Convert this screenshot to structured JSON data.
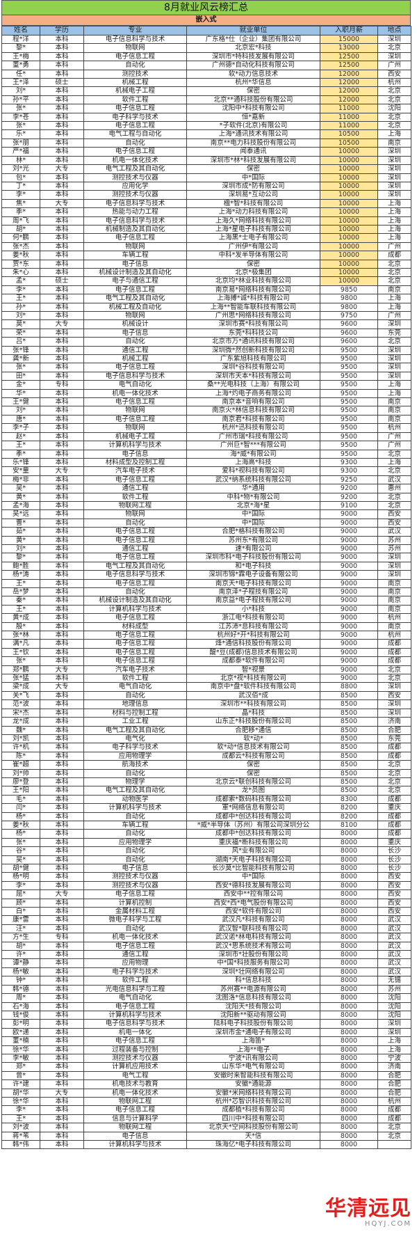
{
  "title": "8月就业风云榜汇总",
  "subtitle": "嵌入式",
  "columns": [
    "姓名",
    "学历",
    "专业",
    "就业单位",
    "入职月薪",
    "地点"
  ],
  "colors": {
    "title_bg": "#92D050",
    "subtitle_bg": "#F4B084",
    "header_bg": "#9BC2E6",
    "high_salary_bg": "#FFE699",
    "watermark": "#E1201E"
  },
  "high_salary_threshold": 10000,
  "rows": [
    [
      "程*洋",
      "本科",
      "电子信息科学与技术",
      "广东格*仕（企业）集团有限公司",
      "15000",
      "深圳"
    ],
    [
      "黎*",
      "本科",
      "物联网",
      "北京宏*科技",
      "13000",
      "北京"
    ],
    [
      "王*梅",
      "本科",
      "电子信息工程",
      "深圳市*特科技发展有限公司",
      "12500",
      "深圳"
    ],
    [
      "董*勇",
      "本科",
      "自动化",
      "广州德*自动化科技有限公司",
      "12500",
      "广州"
    ],
    [
      "任*",
      "本科",
      "测控技术",
      "软*动力信息技术",
      "12000",
      "西安"
    ],
    [
      "王*泽",
      "硕士",
      "机械工程",
      "杭州*华信息",
      "12000",
      "杭州"
    ],
    [
      "刘*",
      "本科",
      "机械电子工程",
      "保密",
      "12000",
      "北京"
    ],
    [
      "孙*平",
      "本科",
      "软件工程",
      "北京**通科技股份有限公司",
      "12000",
      "北京"
    ],
    [
      "张*",
      "本科",
      "电子信息工程",
      "沈阳中*科技有限公司",
      "11000",
      "沈阳"
    ],
    [
      "李*苍",
      "本科",
      "电子科学与技术",
      "恒*嘉新",
      "11000",
      "北京"
    ],
    [
      "张*",
      "本科",
      "电子信息工程",
      "*子软件(北京)有限公司",
      "11000",
      "北京"
    ],
    [
      "乐*",
      "本科",
      "电气工程与自动化",
      "上海*通讯技术有限公司",
      "10500",
      "上海"
    ],
    [
      "张*朋",
      "本科",
      "自动化",
      "南京**电力科技股份有限公司",
      "10500",
      "南京"
    ],
    [
      "严*福",
      "本科",
      "电子信息工程",
      "闻泰通讯",
      "10000",
      "深圳"
    ],
    [
      "林*",
      "本科",
      "机电一体化技术",
      "深圳市*林*科技发展有限公司",
      "10000",
      "深圳"
    ],
    [
      "刘*光",
      "大专",
      "电气工程及其自动化",
      "保密",
      "10000",
      "深圳"
    ],
    [
      "包*",
      "本科",
      "测控技术与仪器",
      "中*国际",
      "10000",
      "深圳"
    ],
    [
      "丁*",
      "本科",
      "应用化学",
      "深圳市成*防有限公司",
      "10000",
      "深圳"
    ],
    [
      "李*",
      "本科",
      "测控技术与仪器",
      "深圳易*互动公司",
      "10000",
      "深圳"
    ],
    [
      "焦*",
      "大专",
      "电子信息科学与技术",
      "楹*智*科技有限公司",
      "10000",
      "上海"
    ],
    [
      "季*",
      "本科",
      "热能与动力工程",
      "上海*动力科技有限公司",
      "10000",
      "上海"
    ],
    [
      "周*飞",
      "本科",
      "电子信息科学与技术",
      "上海久*网络科技有限公司",
      "10000",
      "上海"
    ],
    [
      "胡*",
      "本科",
      "机械制造及其自动化",
      "上海*星电子科技有限公司",
      "10000",
      "上海"
    ],
    [
      "何*鹏",
      "本科",
      "电子信息工程",
      "上海黑*士电子有限公司",
      "10000",
      "上海"
    ],
    [
      "张*杰",
      "本科",
      "物联网",
      "广州伊*有限公司",
      "10000",
      "广州"
    ],
    [
      "姜*秋",
      "本科",
      "车辆工程",
      "中科*发半导体有限公司",
      "10000",
      "成都"
    ],
    [
      "贾*东",
      "本科",
      "电子信息",
      "保密",
      "10000",
      "北京"
    ],
    [
      "朱*心",
      "本科",
      "机械设计制造及其自动化",
      "北京*极集团",
      "10000",
      "北京"
    ],
    [
      "孟*",
      "硕士",
      "电子与通信工程",
      "北京均*林业科技有限公司",
      "10000",
      "北京"
    ],
    [
      "李*",
      "本科",
      "电子信息工程",
      "南京易*网络科技有限公司",
      "9850",
      "南京"
    ],
    [
      "王*",
      "本科",
      "电气工程及其自动化",
      "上海搏*诚*科技有限公司",
      "9800",
      "上海"
    ],
    [
      "孙*",
      "本科",
      "机械工程及自动化",
      "上海**智能车联科技有限公司",
      "9800",
      "上海"
    ],
    [
      "刘*",
      "本科",
      "物联网",
      "广州思*网络科技有限公司",
      "9750",
      "广州"
    ],
    [
      "莫*",
      "大专",
      "机械设计",
      "深圳市赛*科技有限公司",
      "9600",
      "深圳"
    ],
    [
      "荣*",
      "本科",
      "电子信息",
      "东莞*科科技公司",
      "9600",
      "东莞"
    ],
    [
      "吕*",
      "本科",
      "自动化",
      "北京市万*通讯科技有限公司",
      "9600",
      "北京"
    ],
    [
      "张*锋",
      "本科",
      "通信工程",
      "深圳微*然创新科技有限公司",
      "9500",
      "深圳"
    ],
    [
      "龚*新",
      "本科",
      "机械工程",
      "广东紫旭科技有限公司",
      "9500",
      "深圳"
    ],
    [
      "张*",
      "本科",
      "电子信息工程",
      "深圳*谷科技有限公司",
      "9500",
      "深圳"
    ],
    [
      "田*",
      "本科",
      "电子信息科学与技术",
      "深圳市天本*科技有限公司",
      "9500",
      "深圳"
    ],
    [
      "金*",
      "专科",
      "电气自动化",
      "桑**光电科技（上海）有限公司",
      "9500",
      "上海"
    ],
    [
      "华*",
      "本科",
      "机电一体化技术",
      "上海*灼电子商务有限公司",
      "9500",
      "上海"
    ],
    [
      "王*健",
      "本科",
      "电子信息工程",
      "南京本*音响有限公司",
      "9500",
      "南京"
    ],
    [
      "刘*",
      "本科",
      "物联网",
      "南京火*林信息科技有限公司",
      "9500",
      "南京"
    ],
    [
      "唐*",
      "本科",
      "电子信息工程",
      "南京君*科技有限公司",
      "9500",
      "南京"
    ],
    [
      "李*子",
      "本科",
      "物联网",
      "杭州*迅科技有限公司",
      "9500",
      "杭州"
    ],
    [
      "赵*",
      "本科",
      "机械电子工程",
      "广州市瑞*科技有限公司",
      "9500",
      "广州"
    ],
    [
      "王*",
      "本科",
      "计算机科学与技术",
      "广州巨*智***有限公司",
      "9500",
      "广州"
    ],
    [
      "季*",
      "本科",
      "电子信息",
      "海*威*有限公司",
      "9500",
      "北京"
    ],
    [
      "乐*锋",
      "本科",
      "材料成型及控制工程",
      "上海高*科技",
      "9300",
      "上海"
    ],
    [
      "安*童",
      "大专",
      "汽车电子技术",
      "爱科*视科技有限公司",
      "9300",
      "北京"
    ],
    [
      "梅*非",
      "本科",
      "电子信息工程",
      "武汉*纳系统科技有限公司",
      "9250",
      "武汉"
    ],
    [
      "吴*",
      "本科",
      "通信工程",
      "华*通用",
      "9200",
      "惠州"
    ],
    [
      "黄*",
      "本科",
      "软件工程",
      "中科*物*有限公司",
      "9200",
      "北京"
    ],
    [
      "孟*海",
      "本科",
      "物联网工程",
      "北京*海*星",
      "9100",
      "北京"
    ],
    [
      "吴*远",
      "本科",
      "物联网",
      "中*国际",
      "9000",
      "西安"
    ],
    [
      "曹*",
      "本科",
      "自动化",
      "中*国际",
      "9000",
      "西安"
    ],
    [
      "茹*",
      "本科",
      "电子信息工程",
      "合肥*格科技有限公司",
      "9000",
      "武汉"
    ],
    [
      "黄*",
      "本科",
      "电子信息工程",
      "苏州东*有限公司",
      "9000",
      "苏州"
    ],
    [
      "刘*",
      "本科",
      "通信工程",
      "速*有限公司",
      "9000",
      "苏州"
    ],
    [
      "黎*",
      "本科",
      "电子信息工程",
      "深圳市科*电子科技股份有限公司",
      "9000",
      "深圳"
    ],
    [
      "鲍*胜",
      "本科",
      "电气工程及其自动化",
      "和*电子科技",
      "9000",
      "深圳"
    ],
    [
      "杨*涛",
      "本科",
      "电子信息科学与技术",
      "深圳市锦*霖电子设备有限公司",
      "9000",
      "深圳"
    ],
    [
      "王*",
      "本科",
      "电子信息工程",
      "南京天*电子科技有限公司",
      "9000",
      "南京"
    ],
    [
      "岳*梦",
      "本科",
      "自动化",
      "南京泽*子程技有限公司",
      "9000",
      "南京"
    ],
    [
      "秦*",
      "本科",
      "机械设计制造及其自动化",
      "南京益*电子程技有限公司",
      "9000",
      "南京"
    ],
    [
      "王*",
      "本科",
      "计算机科学与技术",
      "小*科技",
      "9000",
      "南京"
    ],
    [
      "黄*成",
      "本科",
      "电子信息工程",
      "浙江电*科技有限公司",
      "9000",
      "杭州"
    ],
    [
      "殷*",
      "本科",
      "材料成型",
      "江苏沛*息科技有限公司",
      "9000",
      "南京"
    ],
    [
      "张*林",
      "本科",
      "电子信息工程",
      "杭州好*开*科技有限公司",
      "9000",
      "杭州"
    ],
    [
      "满*凡",
      "本科",
      "电子信息工程",
      "烽*通信科技股份有限公司",
      "9000",
      "成都"
    ],
    [
      "王*钦",
      "本科",
      "电子信息工程",
      "醍*豆(成都)信息技术有限公司",
      "9000",
      "成都"
    ],
    [
      "张*",
      "本科",
      "电子信息工程",
      "成都泰*软件有限公司",
      "9000",
      "成都"
    ],
    [
      "郑*鹏",
      "大专",
      "汽车电子技术",
      "智*视景",
      "9000",
      "北京"
    ],
    [
      "张*猛",
      "本科",
      "软件工程",
      "北京*视*科技有限公司",
      "9000",
      "北京"
    ],
    [
      "梁*成",
      "大专",
      "电气自动化",
      "南京中*盘*软件科技有限公司",
      "8800",
      "深圳"
    ],
    [
      "关*飞",
      "本科",
      "自动化",
      "武汉佰*成",
      "8500",
      "西安"
    ],
    [
      "范*波",
      "本科",
      "地理信息",
      "深圳市**科技有限公司",
      "8500",
      "深圳"
    ],
    [
      "宋*杰",
      "本科",
      "材料与控制工程",
      "晶*科技",
      "8500",
      "深圳"
    ],
    [
      "龙*成",
      "本科",
      "工业工程",
      "山东正*科技股份有限公司",
      "8500",
      "济南"
    ],
    [
      "魏*",
      "本科",
      "电气工程及其自动化",
      "合肥移*通信",
      "8500",
      "合肥"
    ],
    [
      "刘*凯",
      "本科",
      "电气化",
      "软*动*",
      "8500",
      "东莞"
    ],
    [
      "许*机",
      "本科",
      "电子科学与技术",
      "软*动*信息技术有限公司",
      "8500",
      "成都"
    ],
    [
      "陈*",
      "本科",
      "应用物理学",
      "成都云*科技有限公司",
      "8500",
      "成都"
    ],
    [
      "崔*超",
      "本科",
      "航海技术",
      "保密",
      "8500",
      "北京"
    ],
    [
      "刘*帅",
      "本科",
      "自动化",
      "保密",
      "8500",
      "北京"
    ],
    [
      "廖*登",
      "本科",
      "物理学",
      "北京云*联创科技有限公司",
      "8500",
      "北京"
    ],
    [
      "王*阳",
      "本科",
      "电气工程及其自动化",
      "龙*员图",
      "8500",
      "北京"
    ],
    [
      "毛*",
      "本科",
      "动物医学",
      "成都索*数码科技有限公司",
      "8300",
      "成都"
    ],
    [
      "闫*",
      "本科",
      "计算机科学与技术",
      "軍*网络信息有限公司",
      "8200",
      "重庆"
    ],
    [
      "杨*",
      "本科",
      "自动化",
      "成都中*创达科技有限公司",
      "8200",
      "成都"
    ],
    [
      "姜*秋",
      "本科",
      "车辆工程",
      "*威*半导体（苏州）有限公司深圳分公",
      "8100",
      "成都"
    ],
    [
      "杨*",
      "本科",
      "自动化",
      "成都中*创达科技有限公司",
      "8000",
      "成都"
    ],
    [
      "张*",
      "本科",
      "应用物理学",
      "重庆福*断科技有限公司",
      "8000",
      "重庆"
    ],
    [
      "谷*",
      "本科",
      "自动化",
      "风*业有限公司",
      "8000",
      "长沙"
    ],
    [
      "吴*",
      "本科",
      "自动化",
      "湖南*天电子科技有限公司",
      "8000",
      "长沙"
    ],
    [
      "胡*健",
      "本科",
      "电子信息",
      "长沙莫*比智能科技有限公司",
      "8000",
      "长沙"
    ],
    [
      "杨*明",
      "本科",
      "测控技术与仪器",
      "中*国际",
      "8000",
      "西安"
    ],
    [
      "李*",
      "本科",
      "测控技术与仪器",
      "西安*德科技发展有限公司",
      "8000",
      "西安"
    ],
    [
      "屈*",
      "大专",
      "电子信息工程",
      "西安中**控有限公司",
      "8000",
      "西安"
    ],
    [
      "顾*",
      "本科",
      "计算机控制",
      "西安*西*电气股份有限公司",
      "8000",
      "西安"
    ],
    [
      "白*",
      "本科",
      "金属材料工程",
      "西安*软件有限公司",
      "8000",
      "西安"
    ],
    [
      "康*雷",
      "本科",
      "微电子科学与工程",
      "武汉凡*科技有限公司",
      "8000",
      "武汉"
    ],
    [
      "汪*",
      "本科",
      "自动化",
      "武汉智*联科技有限公司",
      "8000",
      "武汉"
    ],
    [
      "方*生",
      "专科",
      "机电一体化技术",
      "武汉诺*林电科技有限公司",
      "8000",
      "武汉"
    ],
    [
      "胡*",
      "本科",
      "电子信息工程",
      "武汉*思系统技术有限公司",
      "8000",
      "武汉"
    ],
    [
      "许*",
      "本科",
      "通信工程",
      "深圳市*壮股份有限公司",
      "8000",
      "武汉"
    ],
    [
      "谭*静",
      "本科",
      "应用物理",
      "中*国*科技服务有限公司",
      "8000",
      "武汉"
    ],
    [
      "杨*敏",
      "本科",
      "电子科学与技术",
      "深圳*壮网络有限公司",
      "8000",
      "武汉"
    ],
    [
      "钟*",
      "本科",
      "软件工程",
      "科*信息科技",
      "8000",
      "无锡"
    ],
    [
      "韩*德",
      "本科",
      "光电信息科学与工程",
      "苏州赛**电源有限公司",
      "8000",
      "苏州"
    ],
    [
      "周*",
      "本科",
      "电气自动化",
      "沈图洛*信息科技有限公司",
      "8000",
      "沈阳"
    ],
    [
      "石*海",
      "本科",
      "电子信息工程",
      "沈阳天*技有限公司",
      "8000",
      "沈阳"
    ],
    [
      "钱*俊",
      "本科",
      "计算机科学与技术",
      "沈阳新**驱动有限公司",
      "8000",
      "沈阳"
    ],
    [
      "彭*明",
      "本科",
      "电子信息科学与技术",
      "陆科电子科技股份有限公司",
      "8000",
      "深圳"
    ],
    [
      "欧*递",
      "本科",
      "机电一体化",
      "深圳市金*通电子有限公司",
      "8000",
      "深圳"
    ],
    [
      "董*楠",
      "本科",
      "电子信息工程",
      "上海笛*",
      "8000",
      "上海"
    ],
    [
      "徐*华",
      "本科",
      "过程装备与控制",
      "上海**电子",
      "8000",
      "上海"
    ],
    [
      "李*敏",
      "本科",
      "测控技术与仪器",
      "宁波*讯有限公司",
      "8000",
      "宁波"
    ],
    [
      "郑*",
      "本科",
      "计算机应用技术",
      "山东华*电气有限公司",
      "8000",
      "济南"
    ],
    [
      "曾*",
      "本科",
      "电气工程",
      "安徽时来智能科技有限公司",
      "8000",
      "合肥"
    ],
    [
      "许*建",
      "本科",
      "机电技术与教育",
      "安徽*通能源",
      "8000",
      "合肥"
    ],
    [
      "胡*华",
      "大专",
      "机电一体化技术",
      "安徽*米网络科技有限公司",
      "8000",
      "合肥"
    ],
    [
      "徐*华",
      "本科",
      "物联网工程",
      "杭州*芯智识科技有限公司",
      "8000",
      "杭州"
    ],
    [
      "李*",
      "本科",
      "电子信息工程",
      "成都植*科技有限公司",
      "8000",
      "成都"
    ],
    [
      "王*",
      "本科",
      "信息与计算科学",
      "四川中*科技有限公司",
      "8000",
      "成都"
    ],
    [
      "刘*波",
      "本科",
      "物联网工程",
      "北京天*空间科技股份有限公司",
      "8000",
      "北京"
    ],
    [
      "蒋*苇",
      "本科",
      "电子信息",
      "天*信",
      "8000",
      "北京"
    ],
    [
      "韩*伟",
      "本科",
      "计算机科学与技术",
      "珠海亿*电子科技有限公司",
      "8000",
      ""
    ]
  ],
  "watermark": {
    "logo": "华清远见",
    "url": "HQYJ.COM"
  }
}
